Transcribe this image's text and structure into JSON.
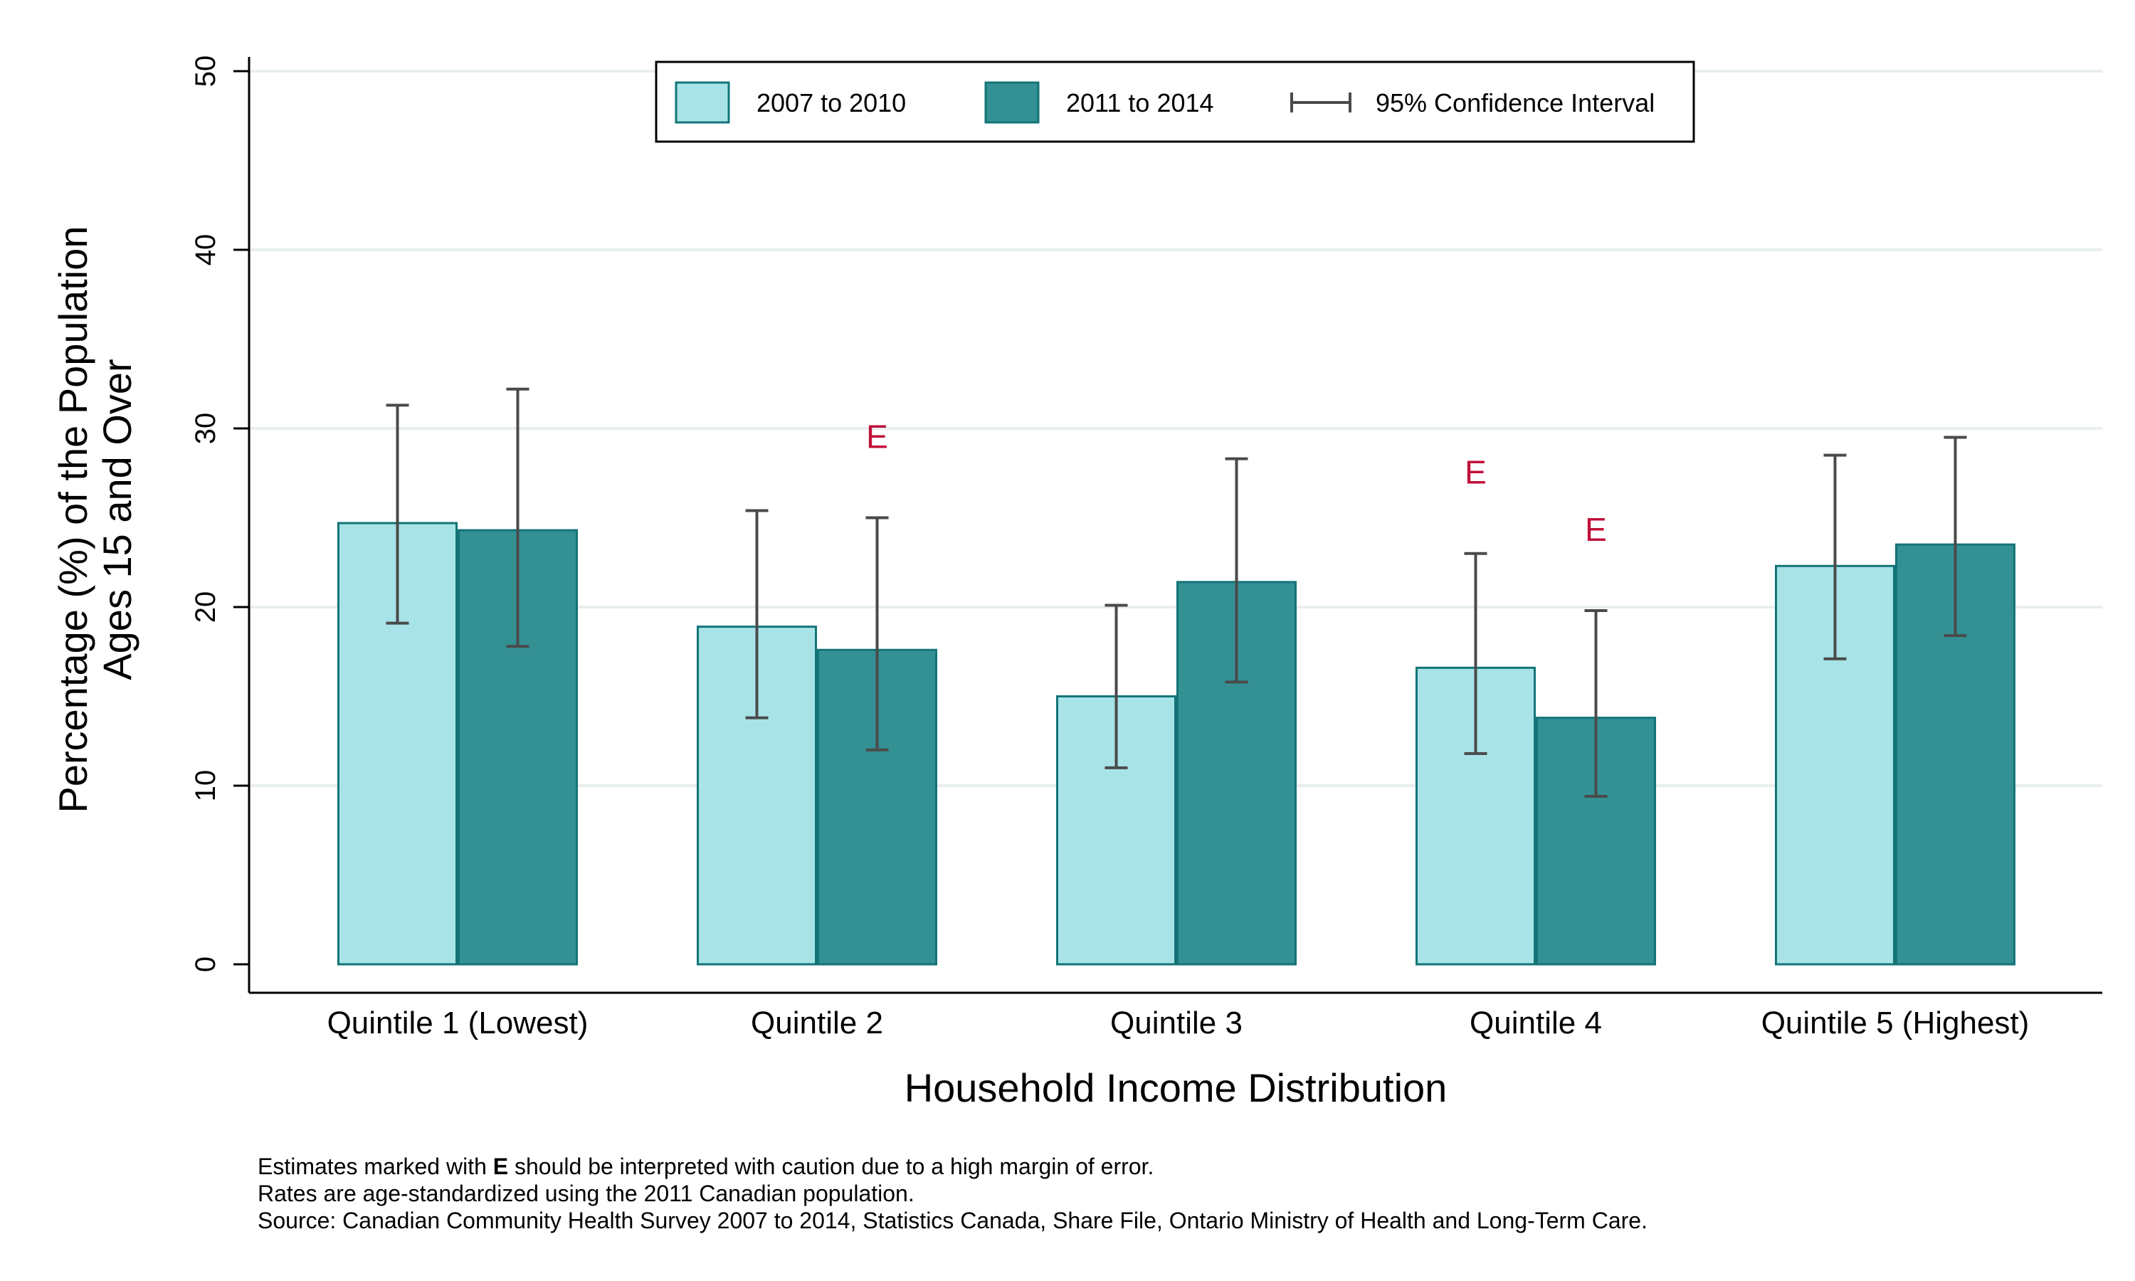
{
  "chart_data": {
    "type": "bar",
    "xlabel": "Household Income Distribution",
    "ylabel_lines": [
      "Percentage (%) of the Population",
      "Ages 15 and Over"
    ],
    "ylim": [
      0,
      50
    ],
    "yticks": [
      0,
      10,
      20,
      30,
      40,
      50
    ],
    "grid": true,
    "legend_position": "top-center",
    "categories": [
      "Quintile 1 (Lowest)",
      "Quintile 2",
      "Quintile 3",
      "Quintile 4",
      "Quintile 5 (Highest)"
    ],
    "series": [
      {
        "name": "2007 to 2010",
        "color": "#a8e4e7",
        "values": [
          24.7,
          18.9,
          15.0,
          16.6,
          22.3
        ],
        "ci_low": [
          19.1,
          13.8,
          11.0,
          11.8,
          17.1
        ],
        "ci_high": [
          31.3,
          25.4,
          20.1,
          23.0,
          28.5
        ],
        "flags": [
          "",
          "",
          "",
          "E",
          ""
        ]
      },
      {
        "name": "2011 to 2014",
        "color": "#339194",
        "values": [
          24.3,
          17.6,
          21.4,
          13.8,
          23.5
        ],
        "ci_low": [
          17.8,
          12.0,
          15.8,
          9.4,
          18.4
        ],
        "ci_high": [
          32.2,
          25.0,
          28.3,
          19.8,
          29.5
        ],
        "flags": [
          "",
          "E",
          "",
          "E",
          ""
        ]
      }
    ],
    "ci_legend_label": "95% Confidence Interval",
    "flag_color": "#c0103a",
    "bar_edge_color": "#137478",
    "grid_color": "#e8eeee"
  },
  "notes": {
    "line1_pre": "Estimates marked with ",
    "line1_bold": "E",
    "line1_post": " should be interpreted with caution due to a high margin of error.",
    "line2": "Rates are age-standardized using the 2011 Canadian population.",
    "line3": "Source: Canadian Community Health Survey 2007 to 2014, Statistics Canada, Share File, Ontario Ministry of Health and Long-Term Care."
  }
}
